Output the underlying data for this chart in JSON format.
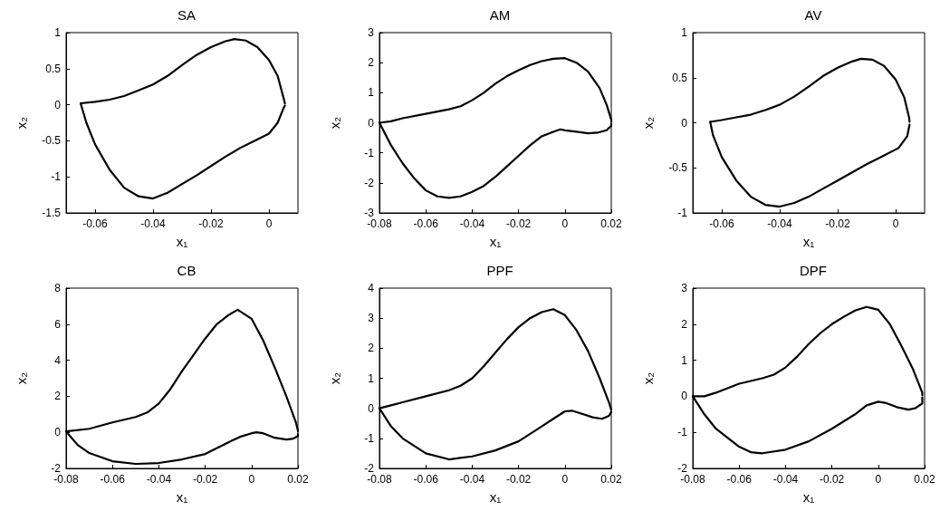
{
  "chart_data": [
    {
      "type": "line",
      "title": "SA",
      "xlabel": "x₁",
      "ylabel": "x₂",
      "marker": "none",
      "xlim": [
        -0.07,
        0.01
      ],
      "xticks": [
        -0.06,
        -0.04,
        -0.02,
        0
      ],
      "ylim": [
        -1.5,
        1
      ],
      "yticks": [
        -1.5,
        -1,
        -0.5,
        0,
        0.5,
        1
      ],
      "series": [
        {
          "color": "#000000",
          "x": [
            -0.065,
            -0.06,
            -0.055,
            -0.05,
            -0.045,
            -0.04,
            -0.035,
            -0.03,
            -0.025,
            -0.02,
            -0.015,
            -0.012,
            -0.008,
            -0.004,
            0,
            0.003,
            0.005,
            0.0055
          ],
          "values": [
            0.02,
            0.04,
            0.07,
            0.12,
            0.2,
            0.28,
            0.4,
            0.55,
            0.69,
            0.8,
            0.88,
            0.91,
            0.89,
            0.8,
            0.62,
            0.4,
            0.1,
            0.02
          ]
        },
        {
          "color": "#000000",
          "x": [
            -0.065,
            -0.063,
            -0.06,
            -0.055,
            -0.05,
            -0.045,
            -0.04,
            -0.035,
            -0.03,
            -0.025,
            -0.02,
            -0.015,
            -0.01,
            -0.005,
            0,
            0.003,
            0.005,
            0.0055
          ],
          "values": [
            0.02,
            -0.25,
            -0.55,
            -0.9,
            -1.15,
            -1.27,
            -1.3,
            -1.22,
            -1.1,
            -0.98,
            -0.85,
            -0.72,
            -0.6,
            -0.5,
            -0.4,
            -0.25,
            -0.05,
            -0.01
          ]
        }
      ]
    },
    {
      "type": "line",
      "title": "AM",
      "xlabel": "x₁",
      "ylabel": "x₂",
      "marker": "none",
      "xlim": [
        -0.08,
        0.02
      ],
      "xticks": [
        -0.08,
        -0.06,
        -0.04,
        -0.02,
        0,
        0.02
      ],
      "ylim": [
        -3,
        3
      ],
      "yticks": [
        -3,
        -2,
        -1,
        0,
        1,
        2,
        3
      ],
      "series": [
        {
          "color": "#000000",
          "x": [
            -0.08,
            -0.075,
            -0.07,
            -0.06,
            -0.05,
            -0.045,
            -0.04,
            -0.035,
            -0.03,
            -0.025,
            -0.02,
            -0.015,
            -0.01,
            -0.005,
            0,
            0.005,
            0.01,
            0.015,
            0.018,
            0.02,
            0.02
          ],
          "values": [
            0,
            0.05,
            0.15,
            0.3,
            0.45,
            0.55,
            0.75,
            1.0,
            1.3,
            1.55,
            1.75,
            1.92,
            2.05,
            2.13,
            2.15,
            2.0,
            1.7,
            1.15,
            0.6,
            0.1,
            0.03
          ]
        },
        {
          "color": "#000000",
          "x": [
            -0.08,
            -0.075,
            -0.07,
            -0.065,
            -0.06,
            -0.055,
            -0.05,
            -0.045,
            -0.04,
            -0.035,
            -0.03,
            -0.025,
            -0.02,
            -0.015,
            -0.01,
            -0.005,
            -0.002,
            0,
            0.005,
            0.01,
            0.014,
            0.018,
            0.02,
            0.02
          ],
          "values": [
            0,
            -0.75,
            -1.35,
            -1.85,
            -2.25,
            -2.45,
            -2.5,
            -2.45,
            -2.3,
            -2.1,
            -1.8,
            -1.45,
            -1.1,
            -0.75,
            -0.45,
            -0.3,
            -0.22,
            -0.25,
            -0.3,
            -0.35,
            -0.33,
            -0.25,
            -0.1,
            -0.04
          ]
        }
      ]
    },
    {
      "type": "line",
      "title": "AV",
      "xlabel": "x₁",
      "ylabel": "x₂",
      "marker": "none",
      "xlim": [
        -0.07,
        0.01
      ],
      "xticks": [
        -0.06,
        -0.04,
        -0.02,
        0
      ],
      "ylim": [
        -1,
        1
      ],
      "yticks": [
        -1,
        -0.5,
        0,
        0.5,
        1
      ],
      "series": [
        {
          "color": "#000000",
          "x": [
            -0.064,
            -0.06,
            -0.055,
            -0.05,
            -0.045,
            -0.04,
            -0.035,
            -0.03,
            -0.025,
            -0.02,
            -0.015,
            -0.012,
            -0.008,
            -0.004,
            0,
            0.003,
            0.0047,
            0.0048
          ],
          "values": [
            0.01,
            0.03,
            0.06,
            0.09,
            0.14,
            0.2,
            0.29,
            0.4,
            0.52,
            0.61,
            0.68,
            0.71,
            0.7,
            0.63,
            0.48,
            0.28,
            0.05,
            0.01
          ]
        },
        {
          "color": "#000000",
          "x": [
            -0.064,
            -0.063,
            -0.06,
            -0.055,
            -0.05,
            -0.045,
            -0.04,
            -0.035,
            -0.03,
            -0.025,
            -0.02,
            -0.015,
            -0.01,
            -0.005,
            0.001,
            0.004,
            0.0048
          ],
          "values": [
            0.01,
            -0.14,
            -0.38,
            -0.64,
            -0.82,
            -0.91,
            -0.93,
            -0.89,
            -0.82,
            -0.73,
            -0.64,
            -0.55,
            -0.46,
            -0.38,
            -0.28,
            -0.15,
            -0.02
          ]
        }
      ]
    },
    {
      "type": "line",
      "title": "CB",
      "xlabel": "x₁",
      "ylabel": "x₂",
      "marker": "none",
      "xlim": [
        -0.08,
        0.02
      ],
      "xticks": [
        -0.08,
        -0.06,
        -0.04,
        -0.02,
        0,
        0.02
      ],
      "ylim": [
        -2,
        8
      ],
      "yticks": [
        -2,
        0,
        2,
        4,
        6,
        8
      ],
      "series": [
        {
          "color": "#000000",
          "x": [
            -0.08,
            -0.07,
            -0.06,
            -0.05,
            -0.045,
            -0.04,
            -0.035,
            -0.03,
            -0.025,
            -0.02,
            -0.015,
            -0.01,
            -0.006,
            0,
            0.005,
            0.01,
            0.015,
            0.019,
            0.02,
            0.02
          ],
          "values": [
            0.05,
            0.2,
            0.55,
            0.85,
            1.1,
            1.6,
            2.4,
            3.4,
            4.3,
            5.2,
            6.0,
            6.5,
            6.8,
            6.3,
            5.1,
            3.6,
            2.0,
            0.6,
            0.1,
            0.06
          ]
        },
        {
          "color": "#000000",
          "x": [
            -0.08,
            -0.075,
            -0.07,
            -0.06,
            -0.05,
            -0.04,
            -0.03,
            -0.02,
            -0.01,
            -0.005,
            0,
            0.002,
            0.005,
            0.01,
            0.015,
            0.018,
            0.02,
            0.02
          ],
          "values": [
            0.05,
            -0.7,
            -1.15,
            -1.6,
            -1.75,
            -1.7,
            -1.5,
            -1.2,
            -0.55,
            -0.25,
            -0.05,
            0,
            -0.05,
            -0.3,
            -0.4,
            -0.35,
            -0.2,
            -0.1
          ]
        }
      ]
    },
    {
      "type": "line",
      "title": "PPF",
      "xlabel": "x₁",
      "ylabel": "x₂",
      "marker": "none",
      "xlim": [
        -0.08,
        0.02
      ],
      "xticks": [
        -0.08,
        -0.06,
        -0.04,
        -0.02,
        0,
        0.02
      ],
      "ylim": [
        -2,
        4
      ],
      "yticks": [
        -2,
        -1,
        0,
        1,
        2,
        3,
        4
      ],
      "series": [
        {
          "color": "#000000",
          "x": [
            -0.08,
            -0.075,
            -0.07,
            -0.06,
            -0.05,
            -0.045,
            -0.04,
            -0.035,
            -0.03,
            -0.025,
            -0.02,
            -0.015,
            -0.01,
            -0.005,
            0,
            0.005,
            0.01,
            0.015,
            0.019,
            0.02
          ],
          "values": [
            0,
            0.1,
            0.2,
            0.4,
            0.6,
            0.75,
            1.0,
            1.4,
            1.85,
            2.3,
            2.7,
            3.0,
            3.2,
            3.3,
            3.1,
            2.6,
            1.9,
            1.0,
            0.2,
            -0.05
          ]
        },
        {
          "color": "#000000",
          "x": [
            -0.08,
            -0.075,
            -0.07,
            -0.06,
            -0.05,
            -0.04,
            -0.03,
            -0.02,
            -0.01,
            -0.005,
            0,
            0.003,
            0.008,
            0.012,
            0.016,
            0.019,
            0.02
          ],
          "values": [
            0,
            -0.6,
            -1.0,
            -1.5,
            -1.7,
            -1.6,
            -1.4,
            -1.1,
            -0.6,
            -0.35,
            -0.1,
            -0.08,
            -0.2,
            -0.3,
            -0.35,
            -0.25,
            -0.12
          ]
        }
      ]
    },
    {
      "type": "line",
      "title": "DPF",
      "xlabel": "x₁",
      "ylabel": "x₂",
      "marker": "none",
      "xlim": [
        -0.08,
        0.02
      ],
      "xticks": [
        -0.08,
        -0.06,
        -0.04,
        -0.02,
        0,
        0.02
      ],
      "ylim": [
        -2,
        3
      ],
      "yticks": [
        -2,
        -1,
        0,
        1,
        2,
        3
      ],
      "series": [
        {
          "color": "#000000",
          "x": [
            -0.08,
            -0.075,
            -0.07,
            -0.06,
            -0.05,
            -0.045,
            -0.04,
            -0.035,
            -0.03,
            -0.025,
            -0.02,
            -0.015,
            -0.01,
            -0.005,
            0,
            0.005,
            0.01,
            0.015,
            0.019,
            0.019
          ],
          "values": [
            0,
            0,
            0.1,
            0.35,
            0.5,
            0.6,
            0.8,
            1.1,
            1.45,
            1.75,
            2.0,
            2.2,
            2.38,
            2.48,
            2.4,
            2.0,
            1.4,
            0.75,
            0.1,
            0.03
          ]
        },
        {
          "color": "#000000",
          "x": [
            -0.08,
            -0.075,
            -0.07,
            -0.06,
            -0.055,
            -0.05,
            -0.04,
            -0.03,
            -0.02,
            -0.01,
            -0.005,
            0,
            0.003,
            0.008,
            0.013,
            0.016,
            0.019,
            0.019
          ],
          "values": [
            0,
            -0.5,
            -0.9,
            -1.4,
            -1.55,
            -1.58,
            -1.48,
            -1.25,
            -0.9,
            -0.5,
            -0.25,
            -0.15,
            -0.18,
            -0.3,
            -0.37,
            -0.33,
            -0.2,
            -0.03
          ]
        }
      ]
    }
  ]
}
